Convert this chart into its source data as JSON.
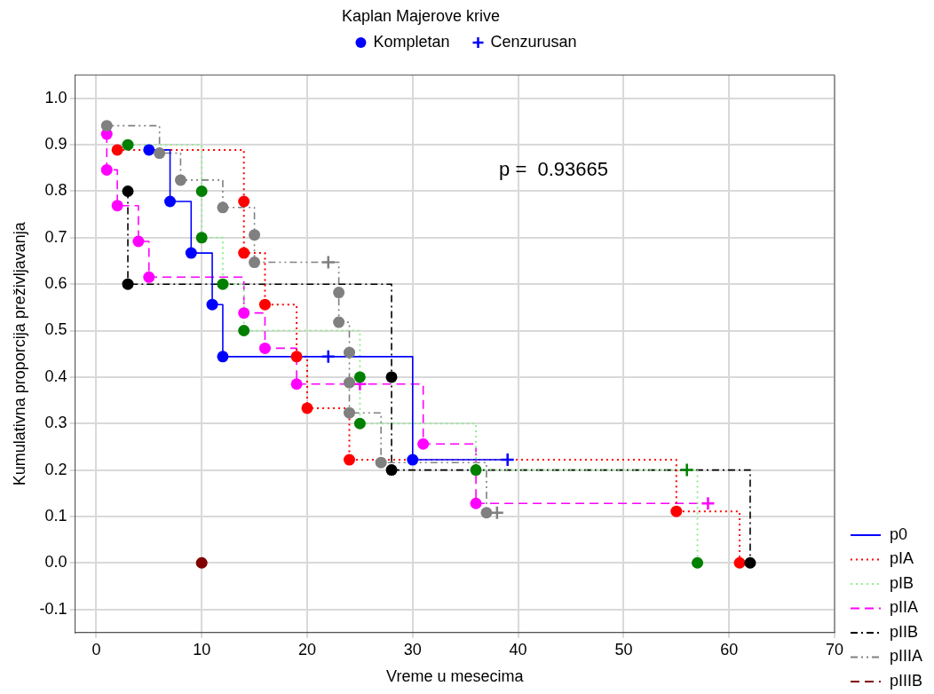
{
  "chart_data": {
    "type": "step",
    "title": "Kaplan Majerove krive",
    "xlabel": "Vreme u mesecima",
    "ylabel": "Kumulativna proporcija preživljavanja",
    "annotations": [
      "p =  0.93665"
    ],
    "xlim": [
      -2,
      70
    ],
    "xticks": [
      0,
      10,
      20,
      30,
      40,
      50,
      60,
      70
    ],
    "ylim": [
      -0.15,
      1.05
    ],
    "yticks": [
      -0.1,
      {
        "value": 0,
        "label": "0.0"
      },
      0.1,
      0.2,
      0.3,
      0.4,
      0.5,
      0.6,
      0.7,
      0.8,
      0.9,
      {
        "value": 1,
        "label": "1.0"
      }
    ],
    "grid": true,
    "legend": "bottom right",
    "series": [
      {
        "name": "p0",
        "color": "#0000ff",
        "line_style": "solid",
        "marker": "none",
        "x": [
          5,
          7,
          9,
          11,
          12,
          22,
          30,
          39
        ],
        "values": [
          0.889,
          0.778,
          0.667,
          0.556,
          0.444,
          0.444,
          0.222,
          0.222
        ]
      },
      {
        "name": "pIA",
        "color": "#ff0000",
        "line_style": "dotted",
        "marker": "none",
        "x": [
          2,
          14,
          14,
          16,
          19,
          20,
          24,
          55,
          61
        ],
        "values": [
          0.889,
          0.778,
          0.667,
          0.556,
          0.444,
          0.333,
          0.222,
          0.111,
          0
        ]
      },
      {
        "name": "pIB",
        "color": "#90ee90",
        "line_style": "dotted",
        "marker": "none",
        "x": [
          3,
          10,
          10,
          12,
          14,
          25,
          25,
          36,
          56,
          57
        ],
        "values": [
          0.9,
          0.8,
          0.7,
          0.6,
          0.5,
          0.4,
          0.3,
          0.2,
          0.2,
          0
        ]
      },
      {
        "name": "pIIA",
        "color": "#ff00ff",
        "line_style": "dashed",
        "marker": "none",
        "x": [
          1,
          1,
          2,
          4,
          5,
          14,
          16,
          19,
          25,
          31,
          36,
          58
        ],
        "values": [
          0.923,
          0.846,
          0.769,
          0.692,
          0.615,
          0.538,
          0.462,
          0.385,
          0.385,
          0.256,
          0.128,
          0.128
        ]
      },
      {
        "name": "pIIB",
        "color": "#000000",
        "line_style": "dashdot",
        "marker": "none",
        "x": [
          3,
          3,
          28,
          28,
          62
        ],
        "values": [
          0.8,
          0.6,
          0.4,
          0.2,
          0
        ]
      },
      {
        "name": "pIIIA",
        "color": "#808080",
        "line_style": "dashdotdot",
        "marker": "none",
        "x": [
          1,
          6,
          8,
          12,
          15,
          15,
          22,
          23,
          23,
          24,
          24,
          24,
          27,
          37,
          38
        ],
        "values": [
          0.941,
          0.882,
          0.824,
          0.765,
          0.706,
          0.647,
          0.647,
          0.582,
          0.518,
          0.453,
          0.388,
          0.323,
          0.216,
          0.108,
          0.108
        ]
      },
      {
        "name": "pIIIB",
        "color": "#800000",
        "line_style": "dashed",
        "marker": "circle",
        "x": [
          10
        ],
        "values": [
          0
        ]
      },
      {
        "name": "Kompletan",
        "type": "scatter",
        "color": "#0000ff",
        "marker": "circle",
        "x": [
          5,
          7,
          9,
          11,
          12,
          30,
          2,
          14,
          14,
          16,
          19,
          20,
          24,
          55,
          61,
          3,
          10,
          10,
          12,
          14,
          25,
          25,
          36,
          57,
          1,
          1,
          2,
          4,
          5,
          14,
          16,
          19,
          31,
          36,
          3,
          3,
          28,
          28,
          62,
          1,
          6,
          8,
          12,
          15,
          15,
          23,
          23,
          24,
          24,
          24,
          27,
          37
        ],
        "values": [
          0.889,
          0.778,
          0.667,
          0.556,
          0.444,
          0.222,
          0.889,
          0.778,
          0.667,
          0.556,
          0.444,
          0.333,
          0.222,
          0.111,
          0,
          0.9,
          0.8,
          0.7,
          0.6,
          0.5,
          0.4,
          0.3,
          0.2,
          0,
          0.923,
          0.846,
          0.769,
          0.692,
          0.615,
          0.538,
          0.462,
          0.385,
          0.256,
          0.128,
          0.8,
          0.6,
          0.4,
          0.2,
          0,
          0.941,
          0.882,
          0.824,
          0.765,
          0.706,
          0.647,
          0.582,
          0.518,
          0.453,
          0.388,
          0.323,
          0.216,
          0.108
        ],
        "colors": [
          "#0000ff",
          "#0000ff",
          "#0000ff",
          "#0000ff",
          "#0000ff",
          "#0000ff",
          "#ff0000",
          "#ff0000",
          "#ff0000",
          "#ff0000",
          "#ff0000",
          "#ff0000",
          "#ff0000",
          "#ff0000",
          "#ff0000",
          "#008000",
          "#008000",
          "#008000",
          "#008000",
          "#008000",
          "#008000",
          "#008000",
          "#008000",
          "#008000",
          "#ff00ff",
          "#ff00ff",
          "#ff00ff",
          "#ff00ff",
          "#ff00ff",
          "#ff00ff",
          "#ff00ff",
          "#ff00ff",
          "#ff00ff",
          "#ff00ff",
          "#000000",
          "#000000",
          "#000000",
          "#000000",
          "#000000",
          "#808080",
          "#808080",
          "#808080",
          "#808080",
          "#808080",
          "#808080",
          "#808080",
          "#808080",
          "#808080",
          "#808080",
          "#808080",
          "#808080",
          "#808080"
        ]
      },
      {
        "name": "Cenzurusan",
        "type": "scatter",
        "color": "#0000ff",
        "marker": "cross",
        "x": [
          22,
          39,
          56,
          25,
          58,
          22,
          38
        ],
        "values": [
          0.444,
          0.222,
          0.2,
          0.385,
          0.128,
          0.647,
          0.108
        ],
        "colors": [
          "#0000ff",
          "#0000ff",
          "#008000",
          "#ff00ff",
          "#ff00ff",
          "#808080",
          "#808080"
        ]
      }
    ]
  }
}
